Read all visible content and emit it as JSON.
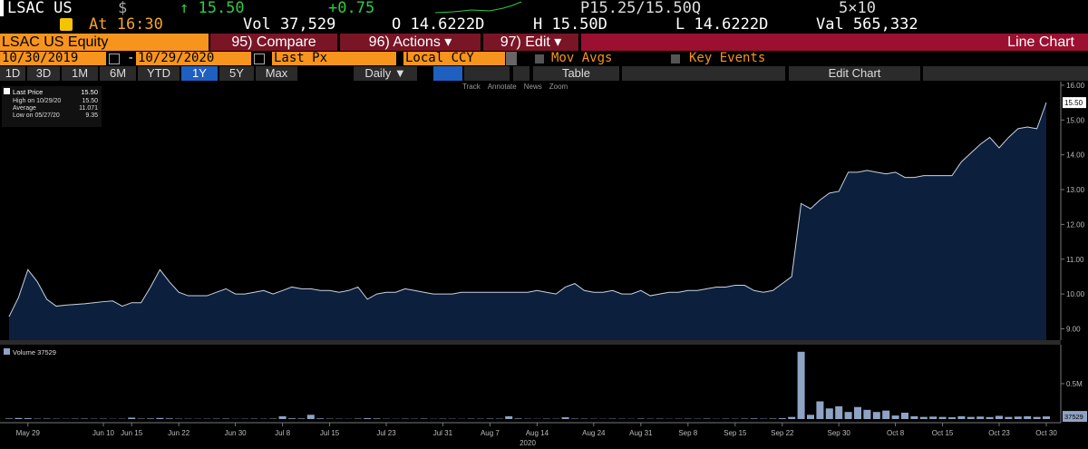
{
  "header": {
    "ticker": "LSAC US",
    "currency": "$",
    "last": "↑ 15.50",
    "change": "+0.75",
    "bid_ask": "P15.25/15.50Q",
    "size": "5×10",
    "time": "At 16:30",
    "volume": "Vol 37,529",
    "open": "O 14.6222D",
    "high": "H 15.50D",
    "low": "L 14.6222D",
    "value": "Val 565,332"
  },
  "menu": {
    "security": "LSAC US Equity",
    "compare": "95) Compare",
    "actions": "96) Actions ▾",
    "edit": "97) Edit ▾",
    "chart_type": "Line Chart"
  },
  "range_bar": {
    "start": "10/30/2019",
    "separator": "-",
    "end": "10/29/2020",
    "field": "Last Px",
    "currency": "Local CCY",
    "mov_avgs": "Mov Avgs",
    "key_events": "Key Events"
  },
  "periods": [
    {
      "label": "1D",
      "selected": false
    },
    {
      "label": "3D",
      "selected": false
    },
    {
      "label": "1M",
      "selected": false
    },
    {
      "label": "6M",
      "selected": false
    },
    {
      "label": "YTD",
      "selected": false
    },
    {
      "label": "1Y",
      "selected": true
    },
    {
      "label": "5Y",
      "selected": false
    },
    {
      "label": "Max",
      "selected": false
    }
  ],
  "frequency": "Daily ▼",
  "table": "Table",
  "edit_chart": "Edit Chart",
  "tools": [
    "Track",
    "Annotate",
    "News",
    "Zoom"
  ],
  "chart_data": [
    {
      "type": "area",
      "series": [
        {
          "name": "Last Price",
          "color": "#c9d2e3",
          "fill": "#0c1f3c",
          "last_label": "15.50",
          "values": [
            9.35,
            9.9,
            10.7,
            10.35,
            9.85,
            9.65,
            9.68,
            9.7,
            9.72,
            9.75,
            9.78,
            9.8,
            9.65,
            9.75,
            9.75,
            10.2,
            10.7,
            10.35,
            10.05,
            9.95,
            9.95,
            9.95,
            10.05,
            10.15,
            10.0,
            10.0,
            10.05,
            10.1,
            10.0,
            10.1,
            10.2,
            10.15,
            10.15,
            10.1,
            10.1,
            10.05,
            10.1,
            10.2,
            9.85,
            10.0,
            10.05,
            10.05,
            10.15,
            10.1,
            10.05,
            10.0,
            10.0,
            10.0,
            10.05,
            10.05,
            10.05,
            10.05,
            10.05,
            10.05,
            10.05,
            10.05,
            10.1,
            10.05,
            10.0,
            10.2,
            10.3,
            10.1,
            10.05,
            10.05,
            10.1,
            10.0,
            10.0,
            10.1,
            9.95,
            10.0,
            10.05,
            10.05,
            10.1,
            10.1,
            10.15,
            10.2,
            10.2,
            10.25,
            10.25,
            10.1,
            10.05,
            10.1,
            10.3,
            10.5,
            12.6,
            12.45,
            12.7,
            12.9,
            12.95,
            13.5,
            13.5,
            13.55,
            13.5,
            13.45,
            13.5,
            13.35,
            13.35,
            13.4,
            13.4,
            13.4,
            13.4,
            13.8,
            14.05,
            14.3,
            14.5,
            14.2,
            14.5,
            14.75,
            14.8,
            14.75,
            15.5
          ]
        }
      ],
      "stats": [
        {
          "label": "High on 10/29/20",
          "value": "15.50"
        },
        {
          "label": "Average",
          "value": "11.071"
        },
        {
          "label": "Low on 05/27/20",
          "value": "9.35"
        }
      ],
      "ylim": [
        8.7,
        16.05
      ],
      "yticks": [
        {
          "value": 9,
          "label": "9.00"
        },
        {
          "value": 10,
          "label": "10.00"
        },
        {
          "value": 11,
          "label": "11.00"
        },
        {
          "value": 12,
          "label": "12.00"
        },
        {
          "value": 13,
          "label": "13.00"
        },
        {
          "value": 14,
          "label": "14.00"
        },
        {
          "value": 15,
          "label": "15.00"
        },
        {
          "value": 16,
          "label": "16.00"
        }
      ]
    },
    {
      "type": "bar",
      "legend": "Volume 37529",
      "color": "#8fa3c4",
      "last_label": "37529",
      "x_axis_year": "2020",
      "categories": [
        null,
        null,
        "May 29",
        null,
        null,
        null,
        null,
        null,
        null,
        null,
        "Jun 10",
        null,
        null,
        "Jun 15",
        null,
        null,
        null,
        null,
        "Jun 22",
        null,
        null,
        null,
        null,
        null,
        "Jun 30",
        null,
        null,
        null,
        null,
        "Jul 8",
        null,
        null,
        null,
        null,
        "Jul 15",
        null,
        null,
        null,
        null,
        null,
        "Jul 23",
        null,
        null,
        null,
        null,
        null,
        "Jul 31",
        null,
        null,
        null,
        null,
        "Aug 7",
        null,
        null,
        null,
        null,
        "Aug 14",
        null,
        null,
        null,
        null,
        null,
        "Aug 24",
        null,
        null,
        null,
        null,
        "Aug 31",
        null,
        null,
        null,
        null,
        "Sep 8",
        null,
        null,
        null,
        null,
        "Sep 15",
        null,
        null,
        null,
        null,
        "Sep 22",
        null,
        null,
        null,
        null,
        null,
        "Sep 30",
        null,
        null,
        null,
        null,
        null,
        "Oct 8",
        null,
        null,
        null,
        null,
        "Oct 15",
        null,
        null,
        null,
        null,
        null,
        "Oct 23",
        null,
        null,
        null,
        null,
        "Oct 30"
      ],
      "values": [
        8000,
        15000,
        12000,
        5000,
        6000,
        4000,
        3000,
        5000,
        6000,
        4000,
        5000,
        3000,
        4000,
        20000,
        6000,
        8000,
        15000,
        9000,
        5000,
        4000,
        3000,
        4000,
        5000,
        6000,
        3000,
        4000,
        5000,
        4000,
        6000,
        40000,
        10000,
        8000,
        60000,
        9000,
        5000,
        4000,
        3000,
        6000,
        12000,
        8000,
        4000,
        3000,
        5000,
        4000,
        6000,
        3000,
        5000,
        4000,
        3000,
        5000,
        4000,
        6000,
        5000,
        40000,
        8000,
        4000,
        3000,
        5000,
        4000,
        25000,
        6000,
        5000,
        4000,
        3000,
        5000,
        4000,
        3000,
        6000,
        4000,
        5000,
        3000,
        4000,
        5000,
        4000,
        6000,
        3000,
        5000,
        4000,
        6000,
        8000,
        5000,
        7000,
        12000,
        30000,
        950000,
        60000,
        250000,
        150000,
        180000,
        100000,
        170000,
        130000,
        100000,
        120000,
        50000,
        90000,
        40000,
        30000,
        35000,
        30000,
        25000,
        40000,
        30000,
        35000,
        28000,
        45000,
        30000,
        35000,
        40000,
        30000,
        37529
      ],
      "ylim": [
        0,
        1050000
      ],
      "yticks": [
        {
          "value": 500000,
          "label": "0.5M"
        }
      ]
    }
  ]
}
